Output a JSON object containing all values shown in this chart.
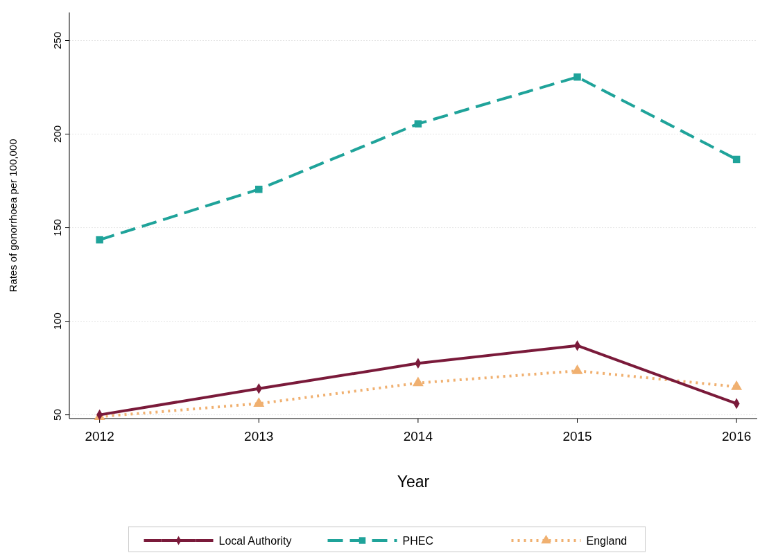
{
  "chart_data": {
    "type": "line",
    "xlabel": "Year",
    "ylabel": "Rates of gonorrhoea per 100,000",
    "x": [
      2012,
      2013,
      2014,
      2015,
      2016
    ],
    "xlim": [
      2011.81,
      2016.13
    ],
    "xticks": [
      2012,
      2013,
      2014,
      2015,
      2016
    ],
    "ylim": [
      48,
      265
    ],
    "yticks": [
      50,
      100,
      150,
      200,
      250
    ],
    "grid": "y",
    "legend": "bottom",
    "series": [
      {
        "name": "Local Authority",
        "color": "#7a1a3a",
        "values": [
          50,
          64,
          77.5,
          87,
          56
        ],
        "marker": "diamond",
        "line_style": "solid"
      },
      {
        "name": "PHEC",
        "color": "#1fa39a",
        "values": [
          143.5,
          170.5,
          205.5,
          230.5,
          186.5
        ],
        "marker": "square",
        "line_style": "dashed"
      },
      {
        "name": "England",
        "color": "#f0b070",
        "values": [
          49,
          56,
          67,
          73.5,
          65
        ],
        "marker": "triangle",
        "line_style": "dotted"
      }
    ]
  }
}
